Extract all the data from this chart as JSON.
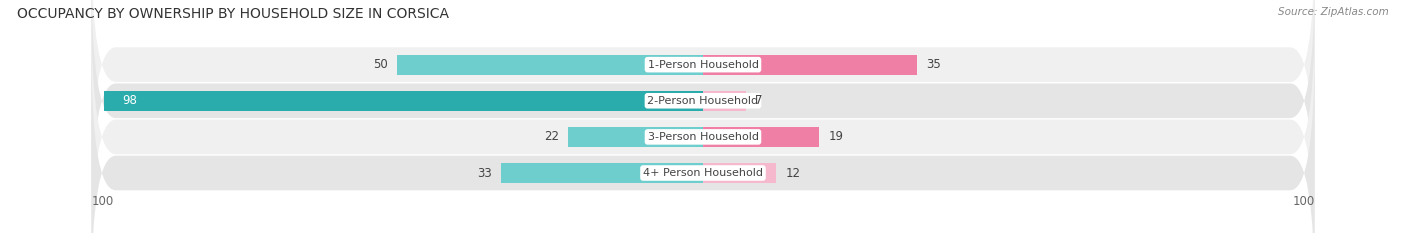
{
  "title": "OCCUPANCY BY OWNERSHIP BY HOUSEHOLD SIZE IN CORSICA",
  "source": "Source: ZipAtlas.com",
  "categories": [
    "1-Person Household",
    "2-Person Household",
    "3-Person Household",
    "4+ Person Household"
  ],
  "owner_values": [
    50,
    98,
    22,
    33
  ],
  "renter_values": [
    35,
    7,
    19,
    12
  ],
  "owner_color_light": "#6ECECE",
  "owner_color_dark": "#2AACAC",
  "renter_color_light": "#F5B8CC",
  "renter_color_dark": "#EF7FA4",
  "row_bg_color": "#EFEFEF",
  "row_alt_bg_color": "#E6E6E6",
  "label_bg_color": "#FFFFFF",
  "max_val": 100,
  "title_fontsize": 10,
  "source_fontsize": 7.5,
  "bar_label_fontsize": 8.5,
  "category_fontsize": 8,
  "axis_fontsize": 8.5,
  "owner_label_color": "#FFFFFF",
  "renter_label_color": "#666666"
}
